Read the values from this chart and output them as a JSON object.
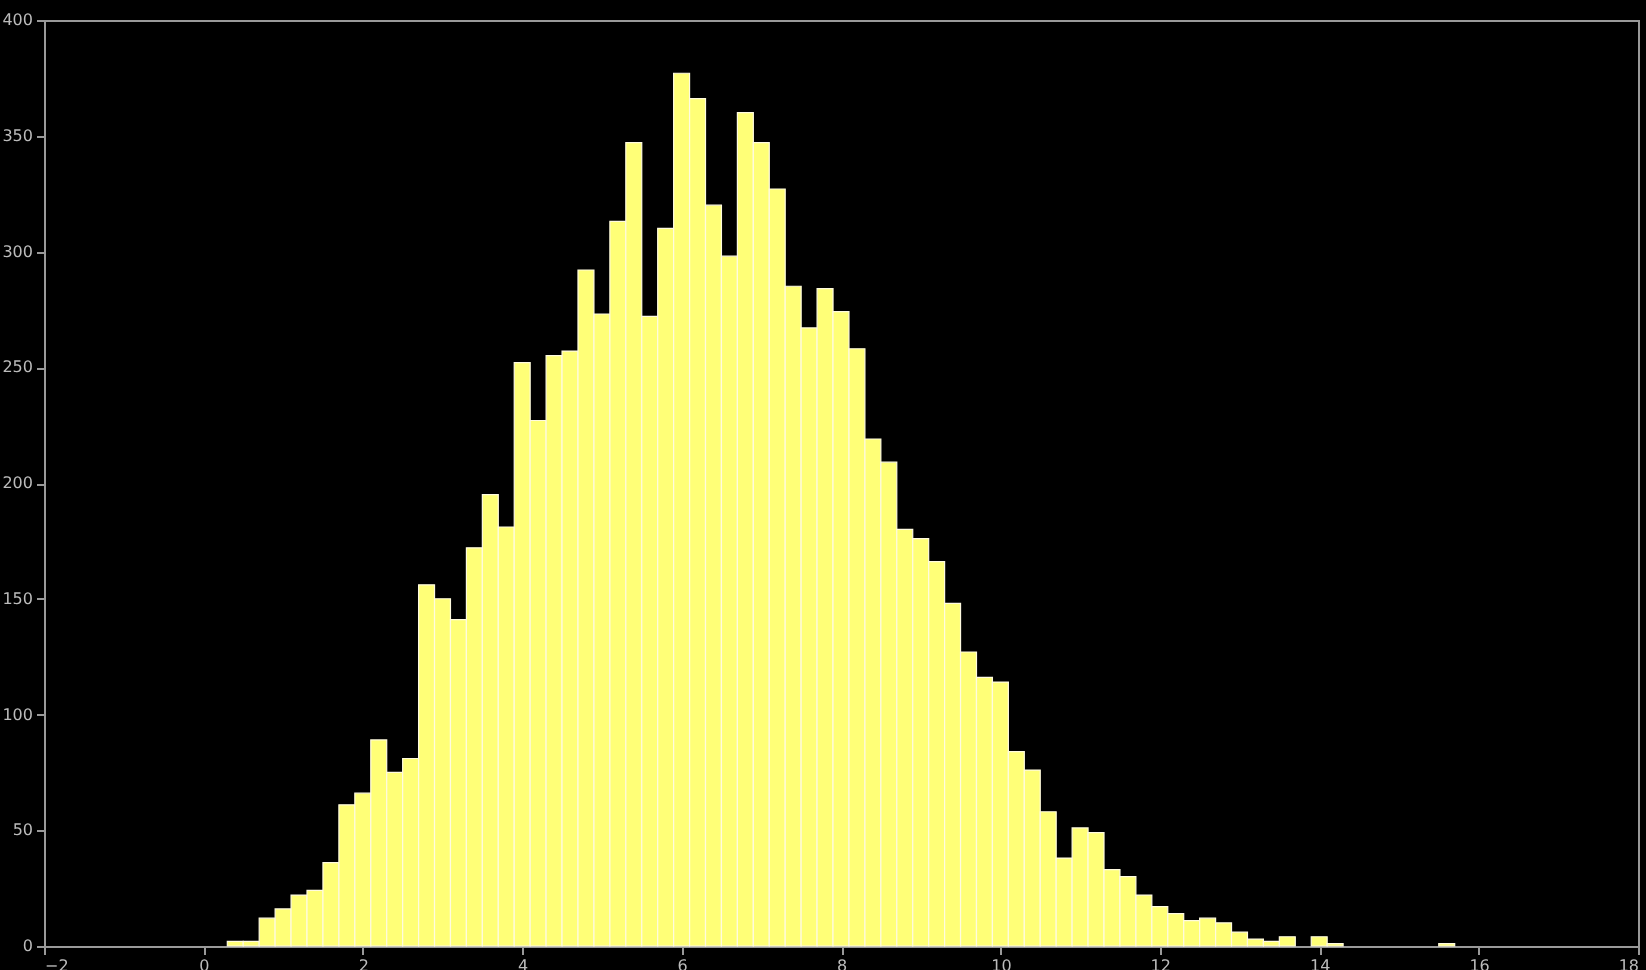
{
  "chart_data": {
    "type": "histogram",
    "color": "#ffff77",
    "bins": [
      0.3,
      0.5,
      0.7,
      0.9,
      1.1,
      1.3,
      1.5,
      1.7,
      1.9,
      2.1,
      2.3,
      2.5,
      2.7,
      2.9,
      3.1,
      3.3,
      3.5,
      3.7,
      3.9,
      4.1,
      4.3,
      4.5,
      4.7,
      4.9,
      5.1,
      5.3,
      5.5,
      5.7,
      5.9,
      6.1,
      6.3,
      6.5,
      6.7,
      6.9,
      7.1,
      7.3,
      7.5,
      7.7,
      7.9,
      8.1,
      8.3,
      8.5,
      8.7,
      8.9,
      9.1,
      9.3,
      9.5,
      9.7,
      9.9,
      10.1,
      10.3,
      10.5,
      10.7,
      10.9,
      11.1,
      11.3,
      11.5,
      11.7,
      11.9,
      12.1,
      12.3,
      12.5,
      12.7,
      12.9,
      13.1,
      13.3,
      13.5,
      13.7,
      13.9,
      14.1,
      14.3,
      14.5,
      14.7,
      14.9,
      15.1,
      15.3,
      15.5,
      15.7
    ],
    "values": [
      2,
      2,
      12,
      16,
      22,
      24,
      36,
      61,
      66,
      89,
      75,
      81,
      156,
      150,
      141,
      172,
      195,
      181,
      252,
      227,
      255,
      257,
      292,
      273,
      313,
      347,
      272,
      310,
      377,
      366,
      320,
      298,
      360,
      347,
      327,
      285,
      267,
      284,
      274,
      258,
      219,
      209,
      180,
      176,
      166,
      148,
      127,
      116,
      114,
      84,
      76,
      58,
      38,
      51,
      49,
      33,
      30,
      22,
      17,
      14,
      11,
      12,
      10,
      6,
      3,
      2,
      4,
      0,
      4,
      1,
      0,
      0,
      0,
      0,
      0,
      0,
      1
    ],
    "xlim": [
      -2,
      18
    ],
    "xticks": [
      -2,
      0,
      2,
      4,
      6,
      8,
      10,
      12,
      14,
      16,
      18
    ],
    "ylim": [
      0,
      400
    ],
    "yticks": [
      0,
      50,
      100,
      150,
      200,
      250,
      300,
      350,
      400
    ],
    "grid": false
  }
}
